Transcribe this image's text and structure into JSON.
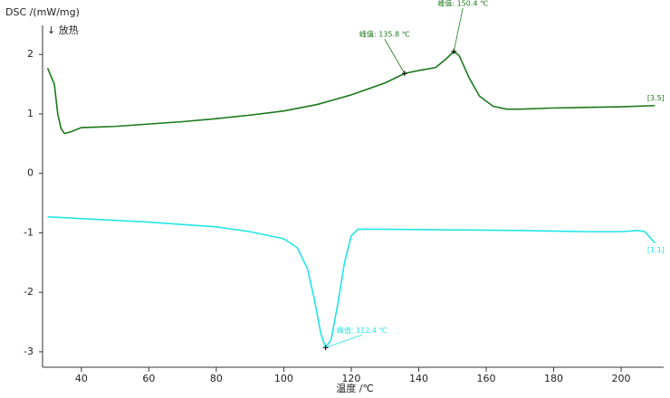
{
  "chart_data": {
    "type": "line",
    "title": "DSC /(mW/mg)",
    "subtitle": "↓ 放热",
    "x_label": "温度 /℃",
    "xlim": [
      28.5,
      212.6
    ],
    "xticks": [
      40,
      60,
      80,
      100,
      120,
      140,
      160,
      180,
      200
    ],
    "ylim": [
      -3.26,
      2.49
    ],
    "yticks": [
      -3,
      -2,
      -1,
      0,
      1,
      2
    ],
    "series": [
      {
        "name": "[3.5]",
        "color": "#1a7a1a",
        "x": [
          30,
          32,
          33,
          34,
          35,
          37,
          40,
          45,
          50,
          60,
          70,
          80,
          90,
          100,
          110,
          120,
          130,
          135.8,
          140,
          145,
          148,
          150.4,
          152,
          155,
          158,
          162,
          166,
          170,
          180,
          190,
          200,
          210
        ],
        "values": [
          1.77,
          1.5,
          1.0,
          0.75,
          0.67,
          0.7,
          0.77,
          0.78,
          0.79,
          0.83,
          0.87,
          0.92,
          0.98,
          1.05,
          1.16,
          1.32,
          1.52,
          1.68,
          1.73,
          1.78,
          1.92,
          2.05,
          1.98,
          1.6,
          1.3,
          1.13,
          1.08,
          1.08,
          1.1,
          1.11,
          1.12,
          1.14
        ]
      },
      {
        "name": "[1.1]",
        "color": "#22e5e5",
        "x": [
          30,
          40,
          60,
          80,
          90,
          100,
          104,
          107,
          109,
          111,
          112.4,
          114,
          116,
          118,
          120,
          122,
          130,
          150,
          170,
          190,
          200,
          205,
          207,
          210
        ],
        "values": [
          -0.73,
          -0.76,
          -0.82,
          -0.9,
          -0.98,
          -1.1,
          -1.25,
          -1.6,
          -2.1,
          -2.7,
          -2.93,
          -2.8,
          -2.2,
          -1.5,
          -1.05,
          -0.94,
          -0.94,
          -0.95,
          -0.96,
          -0.98,
          -0.98,
          -0.96,
          -0.98,
          -1.17
        ]
      }
    ],
    "annotations": [
      {
        "label": "峰值: 135.8 ℃",
        "x": 135.8,
        "y": 1.68,
        "color": "#1a7a1a"
      },
      {
        "label": "峰值: 150.4 ℃",
        "x": 150.4,
        "y": 2.05,
        "color": "#1a7a1a"
      },
      {
        "label": "峰值: 112.4 ℃",
        "x": 112.4,
        "y": -2.93,
        "color": "#22e5e5"
      }
    ]
  }
}
